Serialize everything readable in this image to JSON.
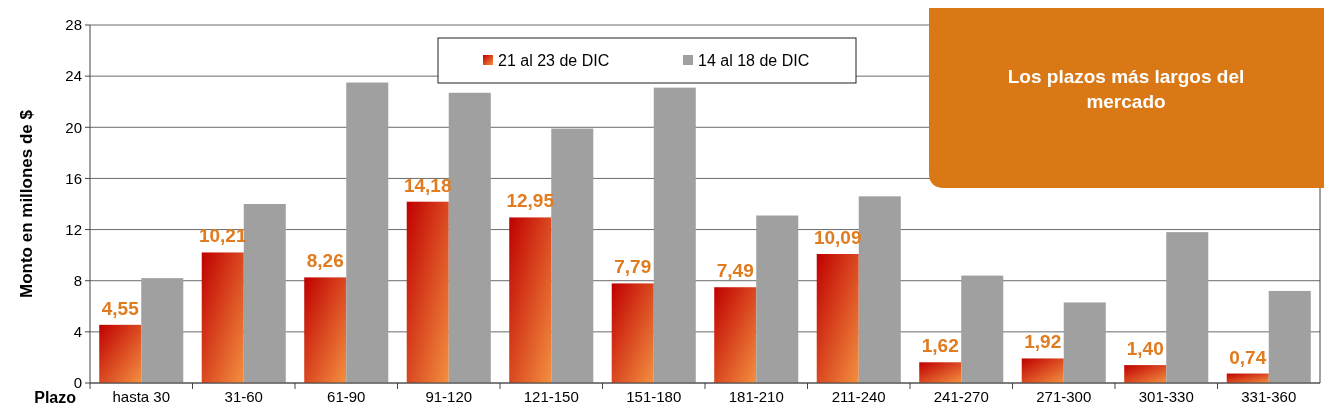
{
  "chart_data": {
    "type": "bar",
    "xlabel": "Plazo",
    "ylabel": "Monto en  millones de $",
    "categories": [
      "hasta 30",
      "31-60",
      "61-90",
      "91-120",
      "121-150",
      "151-180",
      "181-210",
      "211-240",
      "241-270",
      "271-300",
      "301-330",
      "331-360"
    ],
    "series": [
      {
        "name": "21 al 23 de DIC",
        "color": "#e0501a",
        "values": [
          4.55,
          10.21,
          8.26,
          14.18,
          12.95,
          7.79,
          7.49,
          10.09,
          1.62,
          1.92,
          1.4,
          0.74
        ],
        "value_labels": [
          "4,55",
          "10,21",
          "8,26",
          "14,18",
          "12,95",
          "7,79",
          "7,49",
          "10,09",
          "1,62",
          "1,92",
          "1,40",
          "0,74"
        ]
      },
      {
        "name": "14 al 18 de DIC",
        "color": "#a0a0a0",
        "values": [
          8.2,
          14.0,
          23.5,
          22.7,
          19.9,
          23.1,
          13.1,
          14.6,
          8.4,
          6.3,
          11.8,
          7.2
        ]
      }
    ],
    "ylim": [
      0,
      28
    ],
    "yticks": [
      0,
      4,
      8,
      12,
      16,
      20,
      24,
      28
    ],
    "grid": "y",
    "legend": "top",
    "annotations": [
      "Los plazos más largos del mercado"
    ]
  }
}
